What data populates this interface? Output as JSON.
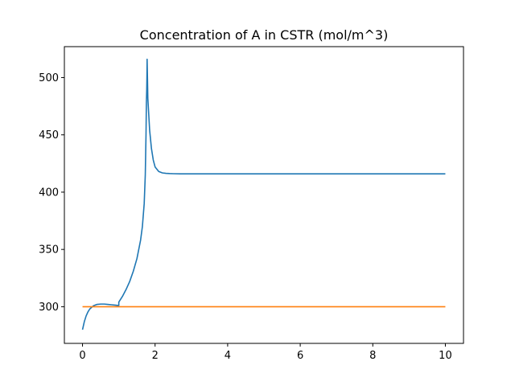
{
  "chart_data": {
    "type": "line",
    "title": "Concentration of A in CSTR (mol/m^3)",
    "xlabel": "",
    "ylabel": "",
    "xlim": [
      -0.5,
      10.5
    ],
    "ylim": [
      268,
      527
    ],
    "grid": false,
    "x_ticks": [
      {
        "value": 0,
        "label": "0"
      },
      {
        "value": 2,
        "label": "2"
      },
      {
        "value": 4,
        "label": "4"
      },
      {
        "value": 6,
        "label": "6"
      },
      {
        "value": 8,
        "label": "8"
      },
      {
        "value": 10,
        "label": "10"
      }
    ],
    "y_ticks": [
      {
        "value": 300,
        "label": "300"
      },
      {
        "value": 350,
        "label": "350"
      },
      {
        "value": 400,
        "label": "400"
      },
      {
        "value": 450,
        "label": "450"
      },
      {
        "value": 500,
        "label": "500"
      }
    ],
    "series": [
      {
        "color": "#1f77b4",
        "x": [
          0,
          0.05,
          0.1,
          0.15,
          0.2,
          0.3,
          0.4,
          0.5,
          0.6,
          0.7,
          0.8,
          0.9,
          1.0,
          1.0,
          1.1,
          1.2,
          1.3,
          1.4,
          1.5,
          1.6,
          1.65,
          1.7,
          1.73,
          1.75,
          1.76,
          1.77,
          1.775,
          1.78,
          1.79,
          1.8,
          1.85,
          1.9,
          1.95,
          2.0,
          2.1,
          2.2,
          2.3,
          2.4,
          2.5,
          2.7,
          3.0,
          4.0,
          5.0,
          6.0,
          7.0,
          8.0,
          9.0,
          10.0
        ],
        "y": [
          280,
          287,
          292,
          295.5,
          298,
          300.8,
          302,
          302.3,
          302.3,
          302,
          301.7,
          301.4,
          301,
          304,
          309,
          315,
          322,
          331,
          342,
          358,
          370,
          390,
          415,
          450,
          478,
          490,
          500,
          516,
          500,
          482,
          454,
          438,
          428,
          422,
          418,
          416.8,
          416.4,
          416.2,
          416.1,
          416,
          416,
          416,
          416,
          416,
          416,
          416,
          416,
          416
        ]
      },
      {
        "color": "#ff7f0e",
        "x": [
          0,
          10
        ],
        "y": [
          300,
          300
        ]
      }
    ]
  }
}
